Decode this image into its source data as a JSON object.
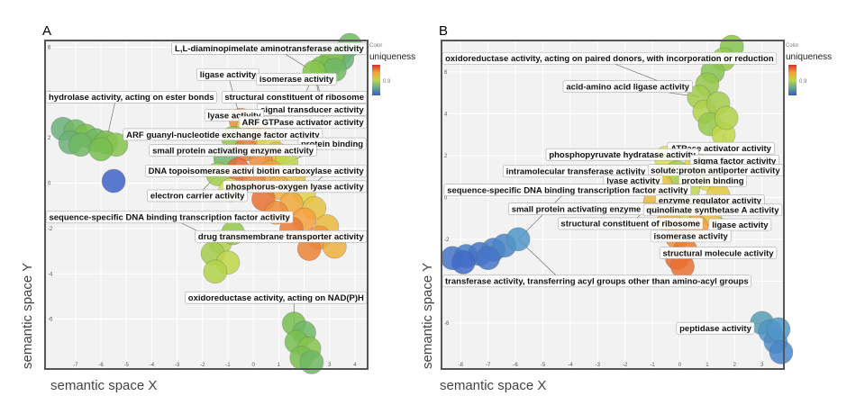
{
  "chart_data": [
    {
      "panel": "A",
      "type": "scatter",
      "xlabel": "semantic space X",
      "ylabel": "semantic space Y",
      "xlim": [
        -8.2,
        4.5
      ],
      "ylim": [
        -8.2,
        6.3
      ],
      "xticks": [
        -7,
        -6,
        -5,
        -4,
        -3,
        -2,
        -1,
        0,
        1,
        2,
        3,
        4
      ],
      "yticks": [
        -6,
        -4,
        -2,
        0,
        2,
        4,
        6
      ],
      "legend": {
        "small": "Color",
        "title": "uniqueness",
        "tick": "0.9",
        "position": "top-right"
      },
      "points": [
        {
          "x": 3.8,
          "y": 6.1,
          "u": 0.88
        },
        {
          "x": 3.4,
          "y": 5.7,
          "u": 0.88
        },
        {
          "x": 3.0,
          "y": 5.2,
          "u": 0.87
        },
        {
          "x": 3.5,
          "y": 5.5,
          "u": 0.89
        },
        {
          "x": 3.1,
          "y": 5.6,
          "u": 0.86
        },
        {
          "x": 2.7,
          "y": 5.1,
          "u": 0.87
        },
        {
          "x": 3.2,
          "y": 5.0,
          "u": 0.88
        },
        {
          "x": 2.4,
          "y": 4.9,
          "u": 0.86
        },
        {
          "x": -7.5,
          "y": 2.4,
          "u": 0.89
        },
        {
          "x": -7.0,
          "y": 2.3,
          "u": 0.88
        },
        {
          "x": -6.6,
          "y": 2.1,
          "u": 0.87
        },
        {
          "x": -6.2,
          "y": 1.9,
          "u": 0.88
        },
        {
          "x": -5.8,
          "y": 1.8,
          "u": 0.87
        },
        {
          "x": -5.4,
          "y": 1.7,
          "u": 0.86
        },
        {
          "x": -7.2,
          "y": 1.8,
          "u": 0.89
        },
        {
          "x": -6.8,
          "y": 1.7,
          "u": 0.88
        },
        {
          "x": -6.0,
          "y": 1.5,
          "u": 0.87
        },
        {
          "x": -5.5,
          "y": 0.1,
          "u": 0.99
        },
        {
          "x": -0.5,
          "y": 2.8,
          "u": 0.7
        },
        {
          "x": -0.2,
          "y": 2.5,
          "u": 0.78
        },
        {
          "x": 0.2,
          "y": 2.2,
          "u": 0.72
        },
        {
          "x": -0.8,
          "y": 2.0,
          "u": 0.85
        },
        {
          "x": 0.6,
          "y": 1.8,
          "u": 0.8
        },
        {
          "x": -0.3,
          "y": 1.5,
          "u": 0.68
        },
        {
          "x": 0.9,
          "y": 1.3,
          "u": 0.75
        },
        {
          "x": -1.1,
          "y": 1.1,
          "u": 0.88
        },
        {
          "x": 0.3,
          "y": 1.0,
          "u": 0.7
        },
        {
          "x": 1.3,
          "y": 0.9,
          "u": 0.82
        },
        {
          "x": -0.6,
          "y": 0.6,
          "u": 0.66
        },
        {
          "x": 0.7,
          "y": 0.5,
          "u": 0.72
        },
        {
          "x": 1.6,
          "y": 0.3,
          "u": 0.76
        },
        {
          "x": -1.4,
          "y": 0.4,
          "u": 0.84
        },
        {
          "x": 0.0,
          "y": 0.1,
          "u": 0.69
        },
        {
          "x": 1.0,
          "y": -0.2,
          "u": 0.74
        },
        {
          "x": 2.0,
          "y": -0.4,
          "u": 0.78
        },
        {
          "x": -0.9,
          "y": -0.3,
          "u": 0.8
        },
        {
          "x": 0.4,
          "y": -0.7,
          "u": 0.67
        },
        {
          "x": 1.5,
          "y": -0.9,
          "u": 0.73
        },
        {
          "x": 2.4,
          "y": -1.1,
          "u": 0.76
        },
        {
          "x": 0.9,
          "y": -1.3,
          "u": 0.7
        },
        {
          "x": 2.0,
          "y": -1.6,
          "u": 0.72
        },
        {
          "x": 2.9,
          "y": -1.9,
          "u": 0.75
        },
        {
          "x": 1.5,
          "y": -2.0,
          "u": 0.68
        },
        {
          "x": 2.6,
          "y": -2.4,
          "u": 0.71
        },
        {
          "x": 3.2,
          "y": -2.8,
          "u": 0.74
        },
        {
          "x": 2.2,
          "y": -2.9,
          "u": 0.69
        },
        {
          "x": -1.3,
          "y": -2.6,
          "u": 0.83
        },
        {
          "x": -1.6,
          "y": -3.1,
          "u": 0.84
        },
        {
          "x": -1.0,
          "y": -3.5,
          "u": 0.82
        },
        {
          "x": -1.5,
          "y": -3.9,
          "u": 0.83
        },
        {
          "x": -0.8,
          "y": -2.2,
          "u": 0.85
        },
        {
          "x": 1.6,
          "y": -6.2,
          "u": 0.87
        },
        {
          "x": 2.0,
          "y": -6.6,
          "u": 0.88
        },
        {
          "x": 1.7,
          "y": -7.0,
          "u": 0.87
        },
        {
          "x": 2.2,
          "y": -7.3,
          "u": 0.86
        },
        {
          "x": 1.9,
          "y": -7.7,
          "u": 0.87
        },
        {
          "x": 2.3,
          "y": -7.9,
          "u": 0.88
        }
      ],
      "labels": [
        {
          "text": "L,L-diaminopimelate aminotransferase activity",
          "x": 0.9,
          "y": 5.95
        },
        {
          "text": "ligase activity",
          "x": -1.0,
          "y": 4.8
        },
        {
          "text": "isomerase activity",
          "x": 1.7,
          "y": 4.6
        },
        {
          "text": "hydrolase activity, acting on ester bonds",
          "x": -5.4,
          "y": 3.8
        },
        {
          "text": "structural constituent of ribosome",
          "x": 2.0,
          "y": 3.8
        },
        {
          "text": "signal transducer activity",
          "x": 2.8,
          "y": 3.25
        },
        {
          "text": "lyase activity",
          "x": -0.75,
          "y": 3.0
        },
        {
          "text": "ARF GTPase activator activity",
          "x": 2.8,
          "y": 2.7
        },
        {
          "text": "ARF guanyl-nucleotide exchange factor activity",
          "x": -1.2,
          "y": 2.15
        },
        {
          "text": "protein binding",
          "x": 3.1,
          "y": 1.75
        },
        {
          "text": "small protein activating enzyme activity",
          "x": -0.8,
          "y": 1.45
        },
        {
          "text": "DNA topoisomerase activity",
          "x": -1.9,
          "y": 0.55
        },
        {
          "text": "biotin carboxylase activity",
          "x": 3.0,
          "y": 0.55
        },
        {
          "text": "phosphorus-oxygen lyase activity",
          "x": 2.4,
          "y": -0.15
        },
        {
          "text": "electron carrier activity",
          "x": -2.2,
          "y": -0.55
        },
        {
          "text": "sequence-specific DNA binding transcription factor activity",
          "x": -3.3,
          "y": -1.5
        },
        {
          "text": "drug transmembrane transporter activity",
          "x": 1.9,
          "y": -2.35
        },
        {
          "text": "oxidoreductase activity, acting on NAD(P)H",
          "x": 1.6,
          "y": -5.05
        }
      ]
    },
    {
      "panel": "B",
      "type": "scatter",
      "xlabel": "semantic space X",
      "ylabel": "semantic space Y",
      "xlim": [
        -8.7,
        3.8
      ],
      "ylim": [
        -8.2,
        7.5
      ],
      "xticks": [
        -8,
        -7,
        -6,
        -5,
        -4,
        -3,
        -2,
        -1,
        0,
        1,
        2,
        3
      ],
      "yticks": [
        -6,
        -4,
        -2,
        0,
        2,
        4,
        6
      ],
      "legend": {
        "small": "Color",
        "title": "uniqueness",
        "tick": "0.9",
        "position": "top-right"
      },
      "points": [
        {
          "x": 1.9,
          "y": 7.2,
          "u": 0.86
        },
        {
          "x": 1.6,
          "y": 6.6,
          "u": 0.85
        },
        {
          "x": 1.2,
          "y": 6.0,
          "u": 0.86
        },
        {
          "x": 1.0,
          "y": 5.4,
          "u": 0.85
        },
        {
          "x": 0.7,
          "y": 4.8,
          "u": 0.84
        },
        {
          "x": 0.9,
          "y": 4.1,
          "u": 0.83
        },
        {
          "x": 1.4,
          "y": 4.5,
          "u": 0.84
        },
        {
          "x": 1.1,
          "y": 3.5,
          "u": 0.85
        },
        {
          "x": 1.6,
          "y": 3.0,
          "u": 0.82
        },
        {
          "x": 1.7,
          "y": 3.8,
          "u": 0.83
        },
        {
          "x": -0.5,
          "y": 1.9,
          "u": 0.8
        },
        {
          "x": 0.6,
          "y": 1.6,
          "u": 0.78
        },
        {
          "x": -0.1,
          "y": 1.2,
          "u": 0.84
        },
        {
          "x": 1.0,
          "y": 0.9,
          "u": 0.8
        },
        {
          "x": -0.7,
          "y": 0.6,
          "u": 0.76
        },
        {
          "x": 0.3,
          "y": 0.4,
          "u": 0.82
        },
        {
          "x": 1.4,
          "y": 0.1,
          "u": 0.77
        },
        {
          "x": -0.9,
          "y": -0.2,
          "u": 0.75
        },
        {
          "x": 0.1,
          "y": -0.5,
          "u": 0.79
        },
        {
          "x": 1.1,
          "y": -0.8,
          "u": 0.76
        },
        {
          "x": -0.4,
          "y": -1.1,
          "u": 0.74
        },
        {
          "x": 0.6,
          "y": -1.4,
          "u": 0.72
        },
        {
          "x": -0.1,
          "y": -1.9,
          "u": 0.7
        },
        {
          "x": 0.2,
          "y": -2.5,
          "u": 0.68
        },
        {
          "x": -0.1,
          "y": -2.9,
          "u": 0.66
        },
        {
          "x": 0.1,
          "y": -3.3,
          "u": 0.67
        },
        {
          "x": -8.3,
          "y": -2.9,
          "u": 0.97
        },
        {
          "x": -7.8,
          "y": -2.8,
          "u": 0.96
        },
        {
          "x": -7.3,
          "y": -2.7,
          "u": 0.97
        },
        {
          "x": -6.8,
          "y": -2.5,
          "u": 0.96
        },
        {
          "x": -6.4,
          "y": -2.3,
          "u": 0.95
        },
        {
          "x": -5.9,
          "y": -2.0,
          "u": 0.93
        },
        {
          "x": -7.9,
          "y": -3.1,
          "u": 0.98
        },
        {
          "x": -7.0,
          "y": -2.9,
          "u": 0.97
        },
        {
          "x": 3.0,
          "y": -6.0,
          "u": 0.92
        },
        {
          "x": 3.3,
          "y": -6.4,
          "u": 0.93
        },
        {
          "x": 3.5,
          "y": -6.9,
          "u": 0.94
        },
        {
          "x": 3.7,
          "y": -7.4,
          "u": 0.95
        },
        {
          "x": 3.6,
          "y": -6.3,
          "u": 0.93
        }
      ],
      "labels": [
        {
          "text": "oxidoreductase activity, acting on paired donors, with incorporation or reduction",
          "x": -2.9,
          "y": 6.65
        },
        {
          "text": "acid-amino acid ligase activity",
          "x": -1.9,
          "y": 5.3
        },
        {
          "text": "ATPase activator activity",
          "x": 1.5,
          "y": 2.35
        },
        {
          "text": "phosphopyruvate hydratase activity",
          "x": -2.1,
          "y": 2.05
        },
        {
          "text": "sigma factor activity",
          "x": 2.0,
          "y": 1.75
        },
        {
          "text": "solute:proton antiporter activity",
          "x": 1.3,
          "y": 1.3
        },
        {
          "text": "intramolecular transferase activity",
          "x": -3.8,
          "y": 1.25
        },
        {
          "text": "lyase activity",
          "x": -1.7,
          "y": 0.8
        },
        {
          "text": "protein binding",
          "x": 1.2,
          "y": 0.8
        },
        {
          "text": "sequence-specific DNA binding transcription factor activity",
          "x": -4.1,
          "y": 0.35
        },
        {
          "text": "enzyme regulator activity",
          "x": 1.1,
          "y": -0.15
        },
        {
          "text": "small protein activating enzyme activity",
          "x": -3.2,
          "y": -0.55
        },
        {
          "text": "quinolinate synthetase A activity",
          "x": 1.2,
          "y": -0.6
        },
        {
          "text": "structural constituent of ribosome",
          "x": -1.8,
          "y": -1.25
        },
        {
          "text": "ligase activity",
          "x": 2.2,
          "y": -1.3
        },
        {
          "text": "isomerase activity",
          "x": 0.4,
          "y": -1.85
        },
        {
          "text": "structural molecule activity",
          "x": 1.4,
          "y": -2.65
        },
        {
          "text": "transferase activity, transferring acyl groups other than amino-acyl groups",
          "x": -4.3,
          "y": -4.0
        },
        {
          "text": "peptidase activity",
          "x": 1.3,
          "y": -6.25
        }
      ]
    }
  ]
}
